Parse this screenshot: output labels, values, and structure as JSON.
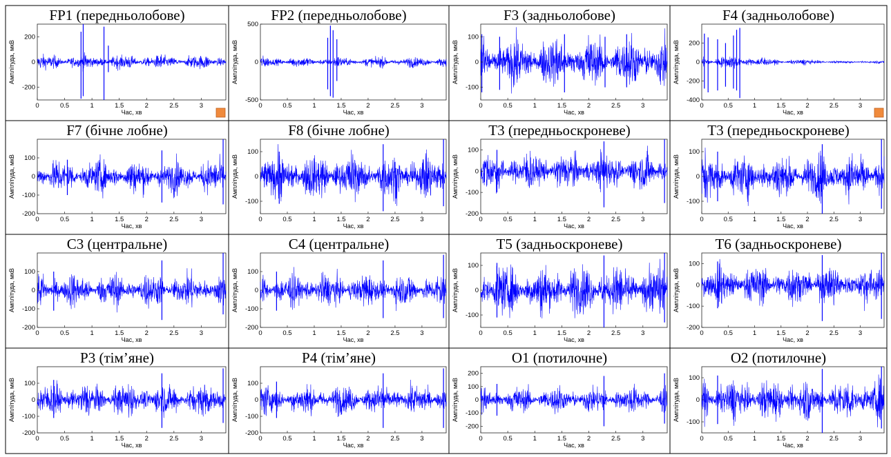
{
  "figure": {
    "xlabel": "Час, хв",
    "ylabel": "Амплітуда, мкВ"
  },
  "colors": {
    "signal": "#0000ff",
    "border": "#000000",
    "marker": "#f08a3c"
  },
  "chart_data": [
    {
      "type": "line",
      "title": "FP1 (передньолобове)",
      "xlabel": "Час, хв",
      "ylabel": "Амплітуда, мкВ",
      "xlim": [
        0,
        3.45
      ],
      "ylim": [
        -300,
        300
      ],
      "xticks": [
        0,
        0.5,
        1,
        1.5,
        2,
        2.5,
        3
      ],
      "yticks": [
        -200,
        0,
        200
      ],
      "amp": 25,
      "spikes": [
        [
          0.8,
          240,
          -290
        ],
        [
          0.84,
          300,
          -270
        ],
        [
          1.22,
          280,
          -300
        ],
        [
          1.3,
          130,
          -80
        ]
      ],
      "marker": true
    },
    {
      "type": "line",
      "title": "FP2 (передньолобове)",
      "xlabel": "Час, хв",
      "ylabel": "Амплітуда, мкВ",
      "xlim": [
        0,
        3.45
      ],
      "ylim": [
        -500,
        500
      ],
      "xticks": [
        0,
        0.5,
        1,
        1.5,
        2,
        2.5,
        3
      ],
      "yticks": [
        -500,
        0,
        500
      ],
      "amp": 30,
      "spikes": [
        [
          1.25,
          320,
          -360
        ],
        [
          1.3,
          480,
          -450
        ],
        [
          1.35,
          420,
          -470
        ],
        [
          1.42,
          300,
          -250
        ]
      ],
      "marker": false
    },
    {
      "type": "line",
      "title": "F3 (задньолобове)",
      "xlabel": "Час, хв",
      "ylabel": "Амплітуда, мкВ",
      "xlim": [
        0,
        3.45
      ],
      "ylim": [
        -150,
        150
      ],
      "xticks": [
        0,
        0.5,
        1,
        1.5,
        2,
        2.5,
        3
      ],
      "yticks": [
        -100,
        0,
        100
      ],
      "amp": 45,
      "spikes": [
        [
          0.02,
          110,
          -120
        ],
        [
          0.35,
          100,
          -110
        ],
        [
          1.55,
          110,
          -120
        ],
        [
          2.3,
          100,
          -100
        ],
        [
          2.7,
          110,
          -100
        ]
      ],
      "marker": false
    },
    {
      "type": "line",
      "title": "F4 (задньолобове)",
      "xlabel": "Час, хв",
      "ylabel": "Амплітуда, мкВ",
      "xlim": [
        0,
        3.45
      ],
      "ylim": [
        -400,
        400
      ],
      "xticks": [
        0,
        0.5,
        1,
        1.5,
        2,
        2.5,
        3
      ],
      "yticks": [
        -400,
        -200,
        0,
        200
      ],
      "amp": 30,
      "spikes": [
        [
          0.05,
          300,
          -280
        ],
        [
          0.12,
          260,
          -320
        ],
        [
          0.3,
          240,
          -300
        ],
        [
          0.45,
          200,
          -260
        ],
        [
          0.6,
          280,
          -280
        ],
        [
          0.66,
          340,
          -300
        ],
        [
          0.72,
          360,
          -380
        ]
      ],
      "decay": [
        1.2,
        2.3
      ],
      "marker": true
    },
    {
      "type": "line",
      "title": "F7 (бічне лобне)",
      "xlabel": "Час, хв",
      "ylabel": "Амплітуда, мкВ",
      "xlim": [
        0,
        3.45
      ],
      "ylim": [
        -200,
        200
      ],
      "xticks": [
        0,
        0.5,
        1,
        1.5,
        2,
        2.5,
        3
      ],
      "yticks": [
        -200,
        -100,
        0,
        100
      ],
      "amp": 40,
      "spikes": [
        [
          0.55,
          90,
          -100
        ],
        [
          2.28,
          140,
          -140
        ],
        [
          3.4,
          200,
          -150
        ]
      ],
      "marker": false
    },
    {
      "type": "line",
      "title": "F8 (бічне лобне)",
      "xlabel": "Час, хв",
      "ylabel": "Амплітуда, мкВ",
      "xlim": [
        0,
        3.45
      ],
      "ylim": [
        -150,
        150
      ],
      "xticks": [
        0,
        0.5,
        1,
        1.5,
        2,
        2.5,
        3
      ],
      "yticks": [
        -100,
        0,
        100
      ],
      "amp": 40,
      "spikes": [
        [
          0.35,
          100,
          -110
        ],
        [
          2.28,
          130,
          -140
        ],
        [
          3.4,
          150,
          -120
        ]
      ],
      "marker": false
    },
    {
      "type": "line",
      "title": "T3 (передньоскроневе)",
      "xlabel": "Час, хв",
      "ylabel": "Амплітуда, мкВ",
      "xlim": [
        0,
        3.45
      ],
      "ylim": [
        -200,
        150
      ],
      "xticks": [
        0,
        0.5,
        1,
        1.5,
        2,
        2.5,
        3
      ],
      "yticks": [
        -200,
        -100,
        0,
        100
      ],
      "amp": 40,
      "spikes": [
        [
          0.3,
          100,
          -100
        ],
        [
          2.28,
          140,
          -170
        ],
        [
          3.4,
          150,
          -150
        ]
      ],
      "marker": false
    },
    {
      "type": "line",
      "title": "T3 (передньоскроневе)",
      "xlabel": "Час, хв",
      "ylabel": "Амплітуда, мкВ",
      "xlim": [
        0,
        3.45
      ],
      "ylim": [
        -150,
        150
      ],
      "xticks": [
        0,
        0.5,
        1,
        1.5,
        2,
        2.5,
        3
      ],
      "yticks": [
        -100,
        0,
        100
      ],
      "amp": 40,
      "spikes": [
        [
          0.3,
          100,
          -100
        ],
        [
          2.28,
          130,
          -150
        ],
        [
          3.4,
          150,
          -130
        ]
      ],
      "marker": false
    },
    {
      "type": "line",
      "title": "C3 (центральне)",
      "xlabel": "Час, хв",
      "ylabel": "Амплітуда, мкВ",
      "xlim": [
        0,
        3.45
      ],
      "ylim": [
        -200,
        200
      ],
      "xticks": [
        0,
        0.5,
        1,
        1.5,
        2,
        2.5,
        3
      ],
      "yticks": [
        -200,
        -100,
        0,
        100
      ],
      "amp": 40,
      "spikes": [
        [
          0.3,
          100,
          -110
        ],
        [
          2.28,
          160,
          -160
        ],
        [
          3.4,
          200,
          -130
        ]
      ],
      "marker": false
    },
    {
      "type": "line",
      "title": "C4 (центральне)",
      "xlabel": "Час, хв",
      "ylabel": "Амплітуда, мкВ",
      "xlim": [
        0,
        3.45
      ],
      "ylim": [
        -200,
        200
      ],
      "xticks": [
        0,
        0.5,
        1,
        1.5,
        2,
        2.5,
        3
      ],
      "yticks": [
        -200,
        -100,
        0,
        100
      ],
      "amp": 40,
      "spikes": [
        [
          0.3,
          100,
          -110
        ],
        [
          2.28,
          160,
          -150
        ],
        [
          3.4,
          190,
          -150
        ]
      ],
      "marker": false
    },
    {
      "type": "line",
      "title": "T5 (задньоскроневе)",
      "xlabel": "Час, хв",
      "ylabel": "Амплітуда, мкВ",
      "xlim": [
        0,
        3.45
      ],
      "ylim": [
        -150,
        150
      ],
      "xticks": [
        0,
        0.5,
        1,
        1.5,
        2,
        2.5,
        3
      ],
      "yticks": [
        -100,
        0,
        100
      ],
      "amp": 45,
      "spikes": [
        [
          0.3,
          110,
          -110
        ],
        [
          2.28,
          140,
          -150
        ],
        [
          3.4,
          150,
          -130
        ]
      ],
      "marker": false
    },
    {
      "type": "line",
      "title": "T6 (задньоскроневе)",
      "xlabel": "Час, хв",
      "ylabel": "Амплітуда, мкВ",
      "xlim": [
        0,
        3.45
      ],
      "ylim": [
        -200,
        150
      ],
      "xticks": [
        0,
        0.5,
        1,
        1.5,
        2,
        2.5,
        3
      ],
      "yticks": [
        -200,
        -100,
        0,
        100
      ],
      "amp": 40,
      "spikes": [
        [
          0.3,
          110,
          -110
        ],
        [
          2.28,
          140,
          -170
        ],
        [
          3.4,
          150,
          -160
        ]
      ],
      "marker": false
    },
    {
      "type": "line",
      "title": "P3 (тім’яне)",
      "xlabel": "Час, хв",
      "ylabel": "Амплітуда, мкВ",
      "xlim": [
        0,
        3.45
      ],
      "ylim": [
        -200,
        200
      ],
      "xticks": [
        0,
        0.5,
        1,
        1.5,
        2,
        2.5,
        3
      ],
      "yticks": [
        -200,
        -100,
        0,
        100
      ],
      "amp": 45,
      "spikes": [
        [
          0.3,
          120,
          -110
        ],
        [
          2.28,
          160,
          -170
        ],
        [
          3.4,
          190,
          -140
        ]
      ],
      "marker": false
    },
    {
      "type": "line",
      "title": "P4 (тім’яне)",
      "xlabel": "Час, хв",
      "ylabel": "Амплітуда, мкВ",
      "xlim": [
        0,
        3.45
      ],
      "ylim": [
        -200,
        200
      ],
      "xticks": [
        0,
        0.5,
        1,
        1.5,
        2,
        2.5,
        3
      ],
      "yticks": [
        -200,
        -100,
        0,
        100
      ],
      "amp": 40,
      "spikes": [
        [
          0.3,
          110,
          -110
        ],
        [
          2.28,
          160,
          -170
        ],
        [
          3.4,
          190,
          -170
        ]
      ],
      "marker": false
    },
    {
      "type": "line",
      "title": "O1 (потилочне)",
      "xlabel": "Час, хв",
      "ylabel": "Амплітуда, мкВ",
      "xlim": [
        0,
        3.45
      ],
      "ylim": [
        -250,
        250
      ],
      "xticks": [
        0,
        0.5,
        1,
        1.5,
        2,
        2.5,
        3
      ],
      "yticks": [
        -200,
        -100,
        0,
        100,
        200
      ],
      "amp": 45,
      "spikes": [
        [
          0.3,
          120,
          -120
        ],
        [
          2.28,
          180,
          -200
        ],
        [
          3.4,
          200,
          -180
        ]
      ],
      "marker": false
    },
    {
      "type": "line",
      "title": "O2 (потилочне)",
      "xlabel": "Час, хв",
      "ylabel": "Амплітуда, мкВ",
      "xlim": [
        0,
        3.45
      ],
      "ylim": [
        -150,
        150
      ],
      "xticks": [
        0,
        0.5,
        1,
        1.5,
        2,
        2.5,
        3
      ],
      "yticks": [
        -100,
        0,
        100
      ],
      "amp": 40,
      "spikes": [
        [
          0.3,
          110,
          -110
        ],
        [
          2.28,
          140,
          -160
        ],
        [
          3.4,
          150,
          -130
        ]
      ],
      "marker": false
    }
  ]
}
